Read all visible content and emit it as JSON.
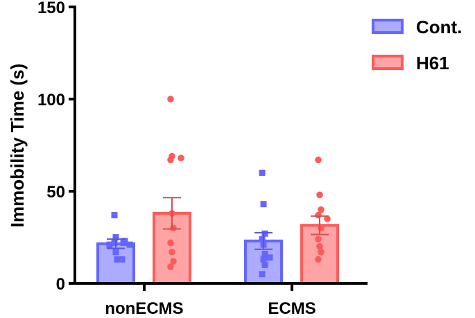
{
  "chart_data": {
    "type": "bar",
    "title": "",
    "xlabel": "",
    "ylabel": "Immobility Time (s)",
    "ylim": [
      0,
      150
    ],
    "yticks": [
      "0",
      "50",
      "100",
      "150"
    ],
    "categories": [
      "nonECMS",
      "ECMS"
    ],
    "legend_position": "top-right",
    "series": [
      {
        "name": "Cont.",
        "color": "#6666ff",
        "marker": "square",
        "values": [
          21.5,
          23
        ],
        "sem": [
          2.5,
          4.5
        ],
        "points": [
          [
            37,
            25,
            23,
            22,
            22,
            21,
            21,
            17,
            13,
            13
          ],
          [
            60,
            43,
            27,
            24,
            21,
            16,
            14,
            13,
            10,
            5
          ]
        ]
      },
      {
        "name": "H61",
        "color": "#ff5a5a",
        "marker": "circle",
        "values": [
          38,
          31.5
        ],
        "sem": [
          8.5,
          5
        ],
        "points": [
          [
            100,
            69,
            68,
            67,
            38,
            30,
            22,
            17,
            12,
            9
          ],
          [
            67,
            48,
            40,
            37,
            35,
            30,
            24,
            20,
            17,
            13
          ]
        ]
      }
    ]
  }
}
